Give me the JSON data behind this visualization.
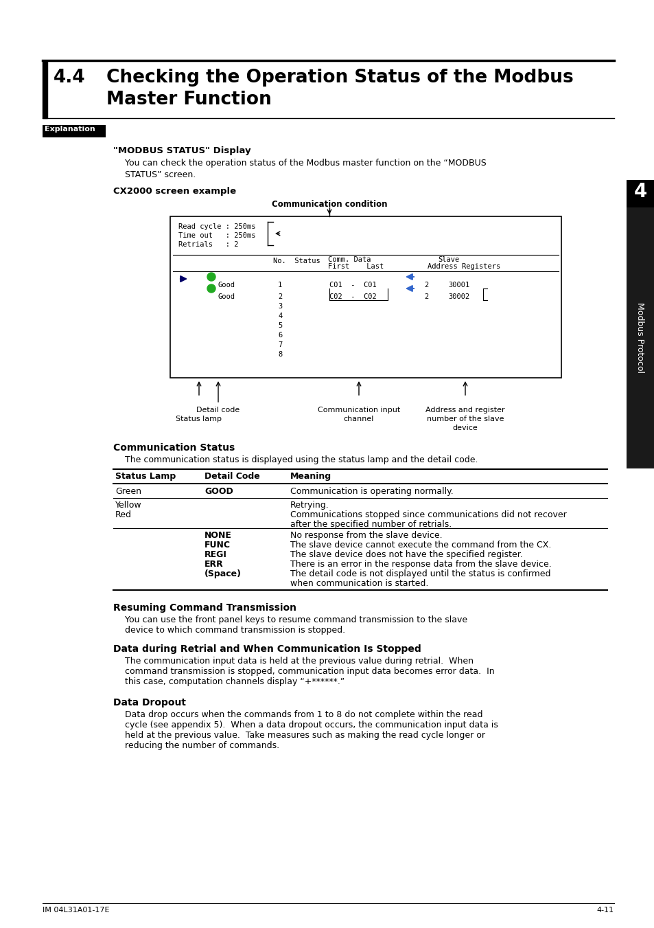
{
  "title_number": "4.4",
  "title_line1": "Checking the Operation Status of the Modbus",
  "title_line2": "Master Function",
  "section_label": "Explanation",
  "modbus_display_heading": "\"MODBUS STATUS\" Display",
  "body1_line1": "You can check the operation status of the Modbus master function on the “MODBUS",
  "body1_line2": "STATUS” screen.",
  "cx2000_heading": "CX2000 screen example",
  "comm_condition_label": "Communication condition",
  "screen_line1": "Read cycle : 250ms",
  "screen_line2": "Time out   : 250ms",
  "screen_line3": "Retrials   : 2",
  "comm_status_heading": "Communication Status",
  "comm_status_intro": "The communication status is displayed using the status lamp and the detail code.",
  "col_header1": "Status Lamp",
  "col_header2": "Detail Code",
  "col_header3": "Meaning",
  "row1_col1": "Green",
  "row1_col2": "GOOD",
  "row1_col3": "Communication is operating normally.",
  "row2_col1a": "Yellow",
  "row2_col1b": "Red",
  "row2_col3a": "Retrying.",
  "row2_col3b": "Communications stopped since communications did not recover",
  "row2_col3c": "after the specified number of retrials.",
  "detail_codes": [
    "NONE",
    "FUNC",
    "REGI",
    "ERR",
    "(Space)"
  ],
  "detail_meanings": [
    "No response from the slave device.",
    "The slave device cannot execute the command from the CX.",
    "The slave device does not have the specified register.",
    "There is an error in the response data from the slave device.",
    "The detail code is not displayed until the status is confirmed",
    "when communication is started."
  ],
  "resuming_heading": "Resuming Command Transmission",
  "resuming_line1": "You can use the front panel keys to resume command transmission to the slave",
  "resuming_line2": "device to which command transmission is stopped.",
  "retrial_heading": "Data during Retrial and When Communication Is Stopped",
  "retrial_line1": "The communication input data is held at the previous value during retrial.  When",
  "retrial_line2": "command transmission is stopped, communication input data becomes error data.  In",
  "retrial_line3": "this case, computation channels display “+******.”",
  "dropout_heading": "Data Dropout",
  "dropout_line1": "Data drop occurs when the commands from 1 to 8 do not complete within the read",
  "dropout_line2": "cycle (see appendix 5).  When a data dropout occurs, the communication input data is",
  "dropout_line3": "held at the previous value.  Take measures such as making the read cycle longer or",
  "dropout_line4": "reducing the number of commands.",
  "footer_left": "IM 04L31A01-17E",
  "footer_right": "4-11",
  "sidebar_number": "4",
  "sidebar_text": "Modbus Protocol",
  "green_color": "#22aa22",
  "blue_arrow_color": "#3366cc",
  "dark_navy": "#000066"
}
